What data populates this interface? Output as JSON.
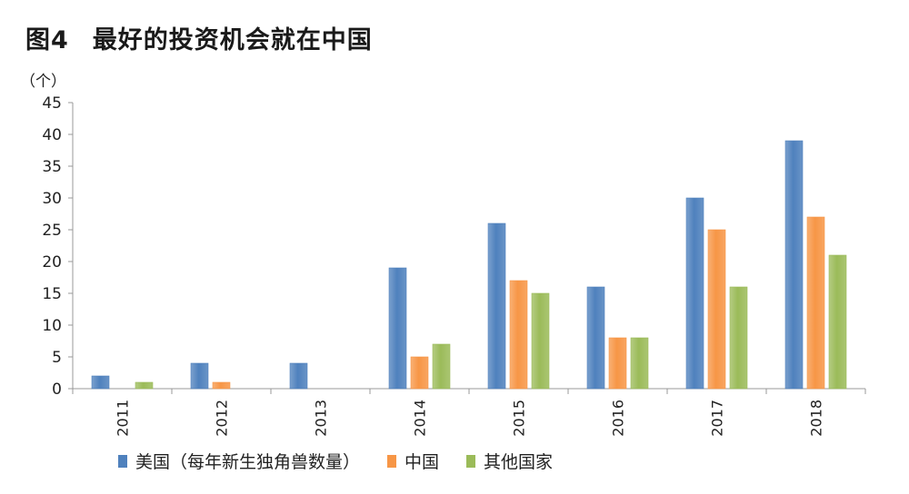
{
  "figure": {
    "number": "图4",
    "title": "最好的投资机会就在中国"
  },
  "colors": {
    "usa": "#4f81bd",
    "china": "#f79646",
    "others": "#9bbb59",
    "axis": "#999999",
    "text": "#222222"
  },
  "chart_data": {
    "type": "bar",
    "title": "最好的投资机会就在中国",
    "ylabel": "（个）",
    "xlabel": "",
    "ylim": [
      0,
      45
    ],
    "yticks": [
      0,
      5,
      10,
      15,
      20,
      25,
      30,
      35,
      40,
      45
    ],
    "grid": false,
    "legend_position": "bottom",
    "categories": [
      "2011",
      "2012",
      "2013",
      "2014",
      "2015",
      "2016",
      "2017",
      "2018"
    ],
    "series": [
      {
        "name": "美国（每年新生独角兽数量）",
        "values": [
          2,
          4,
          4,
          19,
          26,
          16,
          30,
          39
        ]
      },
      {
        "name": "中国",
        "values": [
          0,
          1,
          0,
          5,
          17,
          8,
          25,
          27
        ]
      },
      {
        "name": "其他国家",
        "values": [
          1,
          0,
          0,
          7,
          15,
          8,
          16,
          21
        ]
      }
    ]
  }
}
